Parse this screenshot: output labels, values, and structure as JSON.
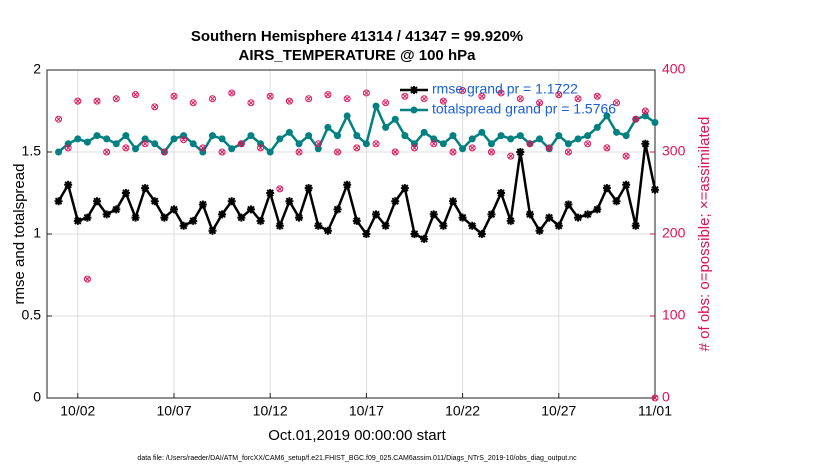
{
  "chart_data": {
    "type": "line",
    "title": "Southern Hemisphere 41314 / 41347 = 99.920%",
    "subtitle": "AIRS_TEMPERATURE @ 100 hPa",
    "xlabel": "Oct.01,2019 00:00:00 start",
    "ylabel": "rmse and totalspread",
    "y2label": "# of obs: o=possible; ×=assimilated",
    "footnote": "data file: /Users/raeder/DAI/ATM_forcXX/CAM6_setup/f.e21.FHIST_BGC.f09_025.CAM6assim.011/Diags_NTrS_2019-10/obs_diag_output.nc",
    "x": [
      1,
      1.5,
      2,
      2.5,
      3,
      3.5,
      4,
      4.5,
      5,
      5.5,
      6,
      6.5,
      7,
      7.5,
      8,
      8.5,
      9,
      9.5,
      10,
      10.5,
      11,
      11.5,
      12,
      12.5,
      13,
      13.5,
      14,
      14.5,
      15,
      15.5,
      16,
      16.5,
      17,
      17.5,
      18,
      18.5,
      19,
      19.5,
      20,
      20.5,
      21,
      21.5,
      22,
      22.5,
      23,
      23.5,
      24,
      24.5,
      25,
      25.5,
      26,
      26.5,
      27,
      27.5,
      28,
      28.5,
      29,
      29.5,
      30,
      30.5,
      31,
      31.5,
      32
    ],
    "series": [
      {
        "name": "rmse grand pr = 1.1722",
        "color": "#000000",
        "marker": "star",
        "values": [
          1.2,
          1.3,
          1.08,
          1.1,
          1.2,
          1.12,
          1.15,
          1.25,
          1.1,
          1.28,
          1.2,
          1.1,
          1.15,
          1.05,
          1.08,
          1.18,
          1.02,
          1.12,
          1.2,
          1.1,
          1.15,
          1.08,
          1.25,
          1.05,
          1.2,
          1.1,
          1.28,
          1.05,
          1.02,
          1.15,
          1.3,
          1.08,
          1.0,
          1.12,
          1.05,
          1.2,
          1.28,
          1.0,
          0.97,
          1.12,
          1.05,
          1.2,
          1.1,
          1.05,
          1.0,
          1.12,
          1.25,
          1.08,
          1.5,
          1.12,
          1.02,
          1.1,
          1.05,
          1.18,
          1.1,
          1.12,
          1.15,
          1.28,
          1.2,
          1.3,
          1.05,
          1.55,
          1.27
        ]
      },
      {
        "name": "totalspread grand pr = 1.5766",
        "color": "#008080",
        "marker": "circle",
        "values": [
          1.5,
          1.55,
          1.58,
          1.56,
          1.6,
          1.58,
          1.55,
          1.6,
          1.52,
          1.58,
          1.55,
          1.5,
          1.58,
          1.6,
          1.55,
          1.5,
          1.6,
          1.58,
          1.52,
          1.55,
          1.6,
          1.55,
          1.5,
          1.58,
          1.62,
          1.55,
          1.6,
          1.52,
          1.65,
          1.6,
          1.72,
          1.6,
          1.55,
          1.78,
          1.65,
          1.7,
          1.6,
          1.55,
          1.62,
          1.58,
          1.55,
          1.6,
          1.52,
          1.58,
          1.62,
          1.55,
          1.6,
          1.58,
          1.6,
          1.55,
          1.58,
          1.52,
          1.6,
          1.55,
          1.58,
          1.6,
          1.65,
          1.72,
          1.62,
          1.6,
          1.7,
          1.72,
          1.68
        ]
      },
      {
        "axis": "y2",
        "color": "#e0105a",
        "marker": "circled-x",
        "values": [
          340,
          305,
          362,
          145,
          362,
          300,
          365,
          305,
          370,
          310,
          355,
          300,
          368,
          315,
          360,
          305,
          365,
          300,
          372,
          310,
          360,
          305,
          368,
          255,
          362,
          300,
          365,
          310,
          370,
          300,
          365,
          305,
          372,
          310,
          360,
          300,
          368,
          305,
          365,
          310,
          362,
          300,
          375,
          305,
          368,
          300,
          372,
          295,
          365,
          310,
          360,
          305,
          370,
          300,
          365,
          310,
          368,
          305,
          360,
          295,
          340,
          350,
          0
        ]
      }
    ],
    "xlim": [
      0.4,
      32
    ],
    "xticks": [
      {
        "value": 2,
        "label": "10/02"
      },
      {
        "value": 7,
        "label": "10/07"
      },
      {
        "value": 12,
        "label": "10/12"
      },
      {
        "value": 17,
        "label": "10/17"
      },
      {
        "value": 22,
        "label": "10/22"
      },
      {
        "value": 27,
        "label": "10/27"
      },
      {
        "value": 32,
        "label": "11/01"
      }
    ],
    "ylim": [
      0,
      2
    ],
    "yticks": [
      0,
      0.5,
      1,
      1.5,
      2
    ],
    "y2lim": [
      0,
      400
    ],
    "y2ticks": [
      0,
      100,
      200,
      300,
      400
    ],
    "grid": true,
    "legend": "upper right"
  }
}
